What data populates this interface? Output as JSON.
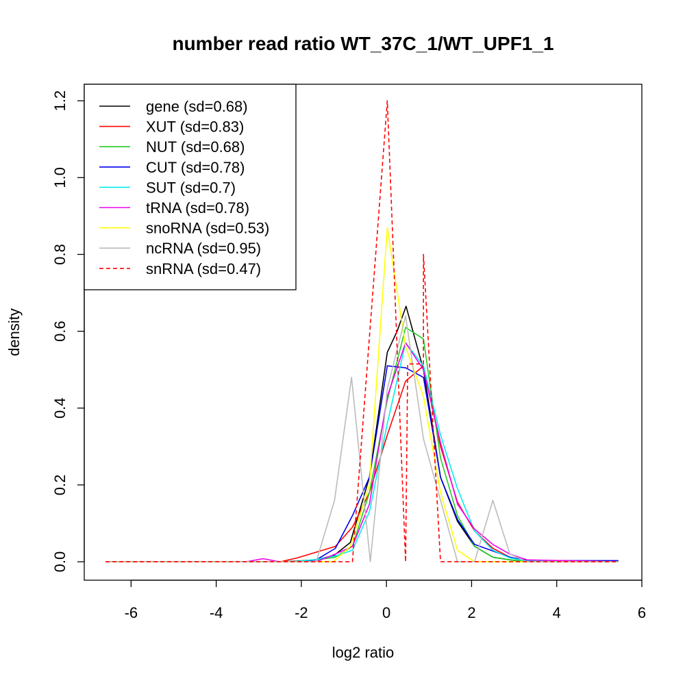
{
  "chart_data": {
    "type": "line",
    "title": "number read ratio WT_37C_1/WT_UPF1_1",
    "xlabel": "log2 ratio",
    "ylabel": "density",
    "xlim": [
      -7.1,
      6.0
    ],
    "ylim": [
      -0.048,
      1.243
    ],
    "x_ticks": [
      -6,
      -4,
      -2,
      0,
      2,
      4,
      6
    ],
    "x_tick_labels": [
      "-6",
      "-4",
      "-2",
      "0",
      "2",
      "4",
      "6"
    ],
    "y_ticks": [
      0.0,
      0.2,
      0.4,
      0.6,
      0.8,
      1.0,
      1.2
    ],
    "y_tick_labels": [
      "0.0",
      "0.2",
      "0.4",
      "0.6",
      "0.8",
      "1.0",
      "1.2"
    ],
    "legend_position": "top-left",
    "grid": false,
    "series": [
      {
        "name": "gene (sd=0.68)",
        "color": "#000000",
        "dashed": false,
        "points": [
          [
            -6.6,
            0
          ],
          [
            -2.5,
            0
          ],
          [
            -2.1,
            0.002
          ],
          [
            -1.7,
            0.005
          ],
          [
            -1.25,
            0.015
          ],
          [
            -0.85,
            0.05
          ],
          [
            -0.4,
            0.22
          ],
          [
            0.02,
            0.545
          ],
          [
            0.25,
            0.6
          ],
          [
            0.46,
            0.665
          ],
          [
            0.87,
            0.5
          ],
          [
            1.27,
            0.22
          ],
          [
            1.67,
            0.105
          ],
          [
            2.07,
            0.04
          ],
          [
            2.5,
            0.012
          ],
          [
            2.9,
            0.005
          ],
          [
            3.3,
            0
          ],
          [
            5.45,
            0
          ]
        ]
      },
      {
        "name": "XUT (sd=0.83)",
        "color": "#ff0000",
        "dashed": false,
        "points": [
          [
            -6.6,
            0
          ],
          [
            -2.5,
            0
          ],
          [
            -2.1,
            0.01
          ],
          [
            -1.65,
            0.025
          ],
          [
            -1.2,
            0.04
          ],
          [
            -0.8,
            0.09
          ],
          [
            -0.4,
            0.18
          ],
          [
            0.02,
            0.33
          ],
          [
            0.45,
            0.47
          ],
          [
            0.87,
            0.51
          ],
          [
            1.27,
            0.3
          ],
          [
            1.67,
            0.155
          ],
          [
            2.07,
            0.08
          ],
          [
            2.5,
            0.035
          ],
          [
            2.9,
            0.012
          ],
          [
            3.3,
            0.003
          ],
          [
            3.8,
            0.001
          ],
          [
            4.2,
            0.002
          ],
          [
            5.45,
            0.001
          ]
        ]
      },
      {
        "name": "NUT (sd=0.68)",
        "color": "#22cc22",
        "dashed": false,
        "points": [
          [
            -6.6,
            0
          ],
          [
            -2.5,
            0
          ],
          [
            -2.1,
            0.001
          ],
          [
            -1.65,
            0.005
          ],
          [
            -1.2,
            0.012
          ],
          [
            -0.8,
            0.04
          ],
          [
            -0.4,
            0.18
          ],
          [
            0.02,
            0.42
          ],
          [
            0.45,
            0.61
          ],
          [
            0.87,
            0.58
          ],
          [
            1.27,
            0.27
          ],
          [
            1.67,
            0.12
          ],
          [
            2.07,
            0.04
          ],
          [
            2.5,
            0.012
          ],
          [
            2.9,
            0.005
          ],
          [
            3.3,
            0.001
          ],
          [
            5.45,
            0
          ]
        ]
      },
      {
        "name": "CUT (sd=0.78)",
        "color": "#0000ee",
        "dashed": false,
        "points": [
          [
            -6.6,
            0
          ],
          [
            -2.5,
            0
          ],
          [
            -2.1,
            0
          ],
          [
            -1.65,
            0.005
          ],
          [
            -1.2,
            0.035
          ],
          [
            -0.8,
            0.12
          ],
          [
            -0.4,
            0.22
          ],
          [
            0.02,
            0.51
          ],
          [
            0.45,
            0.505
          ],
          [
            0.87,
            0.48
          ],
          [
            1.27,
            0.22
          ],
          [
            1.67,
            0.11
          ],
          [
            2.07,
            0.045
          ],
          [
            2.5,
            0.028
          ],
          [
            2.9,
            0.012
          ],
          [
            3.3,
            0.003
          ],
          [
            5.45,
            0.003
          ]
        ]
      },
      {
        "name": "SUT (sd=0.7)",
        "color": "#00eeee",
        "dashed": false,
        "points": [
          [
            -6.6,
            0
          ],
          [
            -2.5,
            0
          ],
          [
            -2.1,
            0.001
          ],
          [
            -1.65,
            0.006
          ],
          [
            -1.2,
            0.015
          ],
          [
            -0.8,
            0.03
          ],
          [
            -0.4,
            0.13
          ],
          [
            0.02,
            0.36
          ],
          [
            0.45,
            0.57
          ],
          [
            0.87,
            0.51
          ],
          [
            1.27,
            0.33
          ],
          [
            1.67,
            0.19
          ],
          [
            2.07,
            0.08
          ],
          [
            2.5,
            0.03
          ],
          [
            2.9,
            0.01
          ],
          [
            3.3,
            0.002
          ],
          [
            5.45,
            0
          ]
        ]
      },
      {
        "name": "tRNA (sd=0.78)",
        "color": "#ee00ee",
        "dashed": false,
        "points": [
          [
            -6.6,
            0
          ],
          [
            -3.3,
            0
          ],
          [
            -2.9,
            0.008
          ],
          [
            -2.5,
            0
          ],
          [
            -2.1,
            0
          ],
          [
            -1.65,
            0
          ],
          [
            -1.2,
            0.02
          ],
          [
            -0.8,
            0.04
          ],
          [
            -0.4,
            0.15
          ],
          [
            0.02,
            0.43
          ],
          [
            0.45,
            0.57
          ],
          [
            0.87,
            0.5
          ],
          [
            1.27,
            0.31
          ],
          [
            1.67,
            0.15
          ],
          [
            2.07,
            0.085
          ],
          [
            2.5,
            0.045
          ],
          [
            2.9,
            0.02
          ],
          [
            3.3,
            0.005
          ],
          [
            5.45,
            0
          ]
        ]
      },
      {
        "name": "snoRNA (sd=0.53)",
        "color": "#ffff00",
        "dashed": false,
        "points": [
          [
            -6.6,
            0
          ],
          [
            -1.25,
            0
          ],
          [
            -0.85,
            0.04
          ],
          [
            -0.4,
            0.2
          ],
          [
            0.02,
            0.87
          ],
          [
            0.45,
            0.56
          ],
          [
            0.87,
            0.43
          ],
          [
            1.27,
            0.18
          ],
          [
            1.67,
            0.03
          ],
          [
            2.07,
            0
          ],
          [
            5.45,
            0
          ]
        ]
      },
      {
        "name": "ncRNA (sd=0.95)",
        "color": "#bbbbbb",
        "dashed": false,
        "points": [
          [
            -6.6,
            0
          ],
          [
            -1.65,
            0
          ],
          [
            -1.22,
            0.16
          ],
          [
            -0.82,
            0.48
          ],
          [
            -0.38,
            0
          ],
          [
            0.02,
            0.45
          ],
          [
            0.45,
            0.64
          ],
          [
            0.87,
            0.32
          ],
          [
            1.27,
            0.16
          ],
          [
            1.67,
            0
          ],
          [
            2.07,
            0
          ],
          [
            2.5,
            0.16
          ],
          [
            2.9,
            0.02
          ],
          [
            3.3,
            0
          ],
          [
            5.45,
            0
          ]
        ]
      },
      {
        "name": "snRNA (sd=0.47)",
        "color": "#ff0000",
        "dashed": true,
        "points": [
          [
            -6.6,
            0
          ],
          [
            -0.8,
            0
          ],
          [
            0.02,
            1.2
          ],
          [
            0.45,
            0
          ],
          [
            0.5,
            0.515
          ],
          [
            0.87,
            0.515
          ],
          [
            0.87,
            0.8
          ],
          [
            1.27,
            0
          ],
          [
            5.45,
            0
          ]
        ]
      }
    ]
  }
}
